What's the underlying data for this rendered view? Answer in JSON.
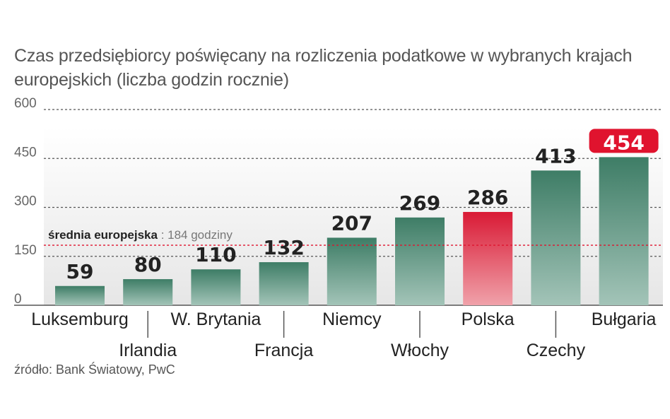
{
  "chart_data": {
    "type": "bar",
    "title": "Czas przedsiębiorcy poświęcany na rozliczenia podatkowe w wybranych krajach europejskich (liczba godzin rocznie)",
    "categories": [
      "Luksemburg",
      "Irlandia",
      "W. Brytania",
      "Francja",
      "Niemcy",
      "Włochy",
      "Polska",
      "Czechy",
      "Bułgaria"
    ],
    "values": [
      59,
      80,
      110,
      132,
      207,
      269,
      286,
      413,
      454
    ],
    "value_labels": [
      "59",
      "80",
      "110",
      "132",
      "207",
      "269",
      "286",
      "413",
      "454"
    ],
    "highlight": [
      "Polska"
    ],
    "ylim": [
      0,
      600
    ],
    "yticks": [
      0,
      150,
      300,
      450,
      600
    ],
    "ytick_labels": [
      "0",
      "150",
      "300",
      "450",
      "600"
    ],
    "grid": true,
    "average": {
      "value": 184,
      "label_bold": "średnia europejska",
      "label_rest": " : 184 godziny"
    },
    "source": "źródło: Bank Światowy, PwC",
    "colors": {
      "bar_top": "#3e7d66",
      "bar_bottom": "#a3c4b8",
      "highlight_top": "#d91a35",
      "highlight_bottom": "#f0a2aa",
      "value_badge": "#e0132e",
      "average_line": "#e0132e",
      "plot_bg_top": "#ffffff",
      "plot_bg_bottom": "#e6e6e6"
    }
  }
}
